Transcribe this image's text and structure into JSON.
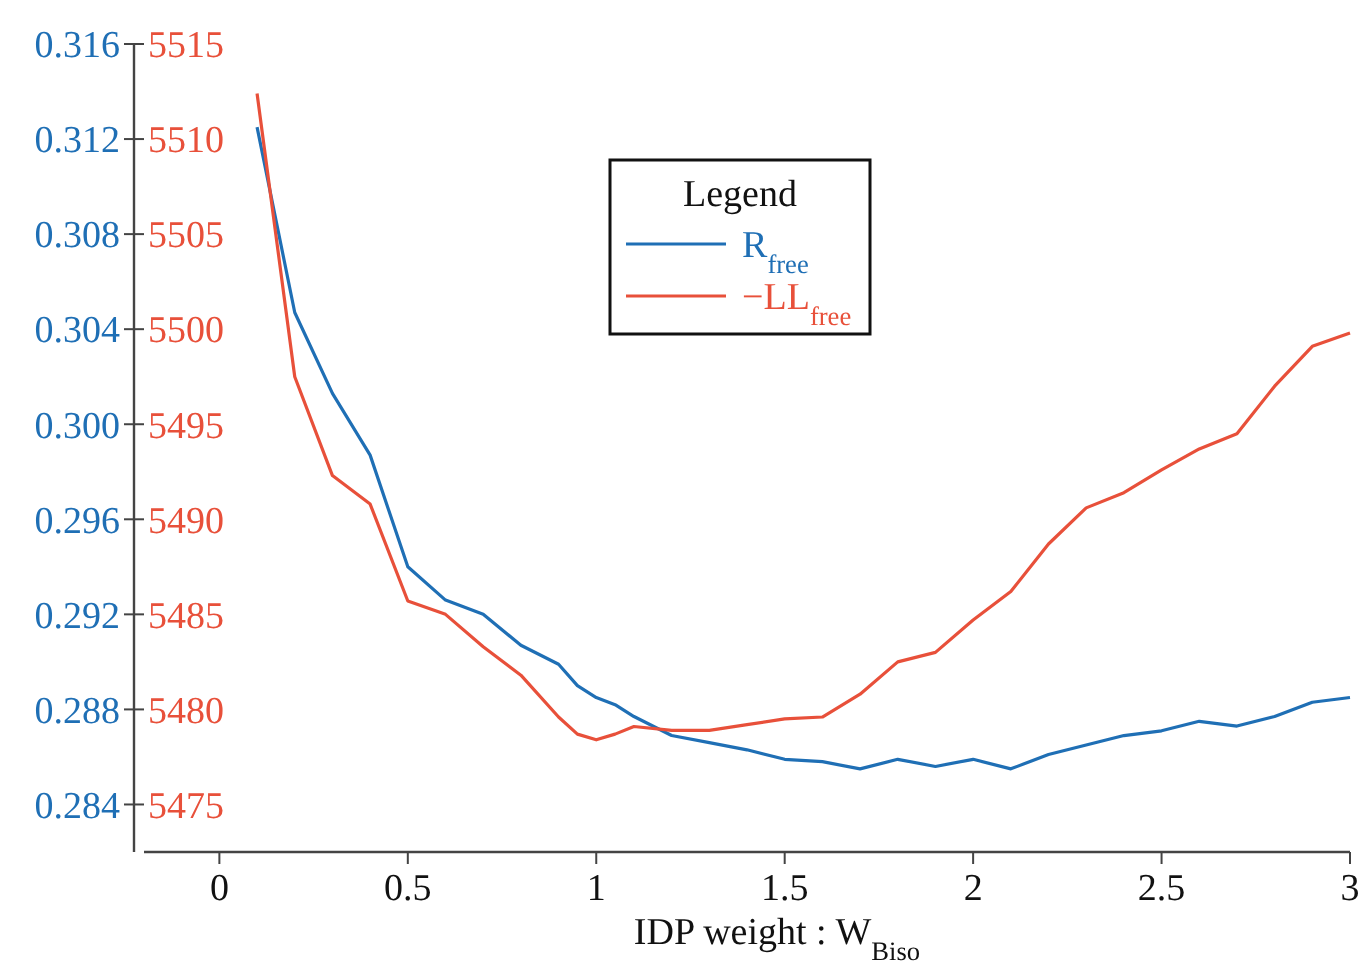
{
  "chart_data": {
    "type": "line",
    "xlabel": "IDP weight : W$_{Biso}$",
    "legend_title": "Legend",
    "x": [
      0.1,
      0.2,
      0.3,
      0.4,
      0.5,
      0.6,
      0.7,
      0.8,
      0.9,
      0.95,
      1.0,
      1.05,
      1.1,
      1.2,
      1.3,
      1.4,
      1.5,
      1.6,
      1.7,
      1.8,
      1.9,
      2.0,
      2.1,
      2.2,
      2.3,
      2.4,
      2.5,
      2.6,
      2.7,
      2.8,
      2.9,
      3.0
    ],
    "series": [
      {
        "name": "R$_{free}$",
        "color": "#1f6fb5",
        "values": [
          0.3125,
          0.3047,
          0.3013,
          0.2987,
          0.294,
          0.2926,
          0.292,
          0.2907,
          0.2899,
          0.289,
          0.2885,
          0.2882,
          0.2877,
          0.2869,
          0.2866,
          0.2863,
          0.2859,
          0.2858,
          0.2855,
          0.2859,
          0.2856,
          0.2859,
          0.2855,
          0.2861,
          0.2865,
          0.2869,
          0.2871,
          0.2875,
          0.2873,
          0.2877,
          0.2883,
          0.2885
        ]
      },
      {
        "name": "−LL$_{free}$",
        "color": "#e8503a",
        "axis": "y2",
        "values": [
          5512.4,
          5497.5,
          5492.3,
          5490.8,
          5485.7,
          5485.0,
          5483.3,
          5481.8,
          5479.6,
          5478.7,
          5478.4,
          5478.7,
          5479.1,
          5478.9,
          5478.9,
          5479.2,
          5479.5,
          5479.6,
          5480.8,
          5482.5,
          5483.0,
          5484.7,
          5486.2,
          5488.7,
          5490.6,
          5491.4,
          5492.6,
          5493.7,
          5494.5,
          5497.0,
          5499.1,
          5499.8
        ]
      }
    ],
    "xlim": [
      -0.2,
      3
    ],
    "xticks": [
      0,
      0.5,
      1,
      1.5,
      2,
      2.5,
      3
    ],
    "ylim": [
      0.282,
      0.316
    ],
    "yticks": [
      {
        "value": 0.284,
        "label": "0.284"
      },
      {
        "value": 0.288,
        "label": "0.288"
      },
      {
        "value": 0.292,
        "label": "0.292"
      },
      {
        "value": 0.296,
        "label": "0.296"
      },
      {
        "value": 0.3,
        "label": "0.300"
      },
      {
        "value": 0.304,
        "label": "0.304"
      },
      {
        "value": 0.308,
        "label": "0.308"
      },
      {
        "value": 0.312,
        "label": "0.312"
      },
      {
        "value": 0.316,
        "label": "0.316"
      }
    ],
    "y2lim": [
      5472.5,
      5515
    ],
    "y2ticks": [
      5475,
      5480,
      5485,
      5490,
      5495,
      5500,
      5505,
      5510,
      5515
    ],
    "legend": "top",
    "grid": false,
    "line_style": "solid",
    "marker": "none"
  }
}
